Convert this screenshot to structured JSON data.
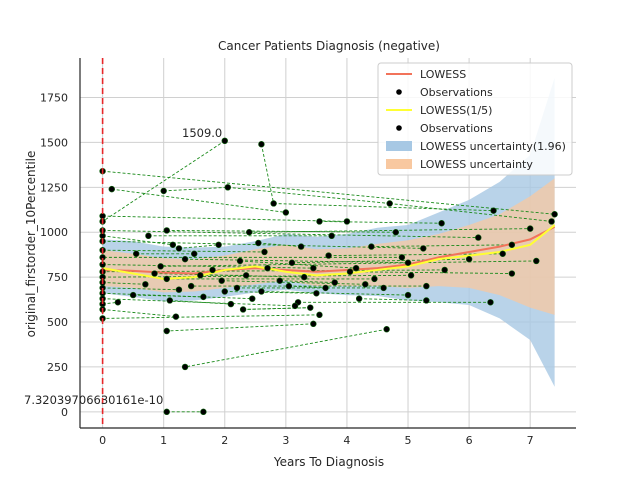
{
  "chart_data": {
    "type": "scatter",
    "title": "Cancer Patients Diagnosis (negative)",
    "xlabel": "Years To Diagnosis",
    "ylabel": "original_firstorder_10Percentile",
    "xlim": [
      -0.37,
      7.75
    ],
    "ylim": [
      -90,
      1970
    ],
    "xticks": [
      "0",
      "1",
      "2",
      "3",
      "4",
      "5",
      "6",
      "7"
    ],
    "yticks": [
      "0",
      "250",
      "500",
      "750",
      "1000",
      "1250",
      "1500",
      "1750"
    ],
    "grid": true,
    "vline_x": 0,
    "legend_position": "top-right",
    "legend": [
      {
        "label": "LOWESS",
        "kind": "line",
        "color": "#f2735a"
      },
      {
        "label": "Observations",
        "kind": "dot",
        "color": "#000000"
      },
      {
        "label": "LOWESS(1/5)",
        "kind": "line",
        "color": "#ffff33"
      },
      {
        "label": "Observations",
        "kind": "dot",
        "color": "#000000"
      },
      {
        "label": "LOWESS uncertainty(1.96)",
        "kind": "patch",
        "color": "#a7c8e4"
      },
      {
        "label": "LOWESS uncertainty",
        "kind": "patch",
        "color": "#f8c8a0"
      }
    ],
    "annotations": [
      {
        "text": "1509.0",
        "x": 1.3,
        "y": 1530
      },
      {
        "text": "7.32039706630161e-10",
        "x": -1.3,
        "y": 45
      }
    ],
    "band_outer": {
      "x": [
        0,
        0.5,
        1,
        1.5,
        2,
        2.5,
        3,
        3.5,
        4,
        4.5,
        5,
        5.5,
        6,
        6.5,
        7,
        7.4
      ],
      "upper": [
        960,
        950,
        920,
        915,
        920,
        950,
        990,
        975,
        990,
        1025,
        1040,
        1110,
        1180,
        1280,
        1430,
        1860
      ],
      "lower": [
        660,
        640,
        615,
        620,
        640,
        665,
        680,
        660,
        650,
        645,
        620,
        610,
        595,
        520,
        400,
        140
      ]
    },
    "band_inner": {
      "x": [
        0,
        0.5,
        1,
        1.5,
        2,
        2.5,
        3,
        3.5,
        4,
        4.5,
        5,
        5.5,
        6,
        6.5,
        7,
        7.4
      ],
      "upper": [
        900,
        880,
        855,
        850,
        870,
        905,
        930,
        905,
        910,
        935,
        955,
        990,
        1040,
        1100,
        1200,
        1300
      ],
      "lower": [
        700,
        690,
        665,
        670,
        690,
        710,
        730,
        700,
        700,
        700,
        690,
        700,
        690,
        650,
        580,
        540
      ]
    },
    "lowess": {
      "x": [
        0,
        0.5,
        1,
        1.5,
        2,
        2.5,
        3,
        3.5,
        4,
        4.5,
        5,
        5.5,
        6,
        6.5,
        7,
        7.4
      ],
      "y": [
        790,
        785,
        775,
        770,
        790,
        800,
        790,
        780,
        790,
        800,
        820,
        860,
        890,
        920,
        960,
        1030
      ]
    },
    "lowess_fifth": {
      "x": [
        0,
        0.5,
        1,
        1.5,
        2,
        2.5,
        3,
        3.5,
        4,
        4.5,
        5,
        5.5,
        6,
        6.5,
        7,
        7.4
      ],
      "y": [
        800,
        770,
        740,
        750,
        790,
        810,
        780,
        760,
        770,
        790,
        810,
        850,
        870,
        890,
        930,
        1040
      ]
    },
    "observations": [
      {
        "x": 0,
        "y": 1340
      },
      {
        "x": 0.15,
        "y": 1240
      },
      {
        "x": 1,
        "y": 1230
      },
      {
        "x": 2.05,
        "y": 1250
      },
      {
        "x": 2.6,
        "y": 1490
      },
      {
        "x": 2.0,
        "y": 1509
      },
      {
        "x": 2.8,
        "y": 1160
      },
      {
        "x": 4.7,
        "y": 1160
      },
      {
        "x": 6.4,
        "y": 1120
      },
      {
        "x": 7.4,
        "y": 1100
      },
      {
        "x": 3.0,
        "y": 1110
      },
      {
        "x": 0,
        "y": 1090
      },
      {
        "x": 0,
        "y": 1060
      },
      {
        "x": 4.0,
        "y": 1060
      },
      {
        "x": 3.55,
        "y": 1060
      },
      {
        "x": 5.55,
        "y": 1050
      },
      {
        "x": 7.35,
        "y": 1060
      },
      {
        "x": 0,
        "y": 1010
      },
      {
        "x": 1.05,
        "y": 1010
      },
      {
        "x": 2.4,
        "y": 1000
      },
      {
        "x": 7.0,
        "y": 1020
      },
      {
        "x": 4.8,
        "y": 1000
      },
      {
        "x": 6.15,
        "y": 970
      },
      {
        "x": 3.75,
        "y": 980
      },
      {
        "x": 0,
        "y": 980
      },
      {
        "x": 0.75,
        "y": 980
      },
      {
        "x": 0,
        "y": 950
      },
      {
        "x": 1.15,
        "y": 930
      },
      {
        "x": 1.25,
        "y": 910
      },
      {
        "x": 1.9,
        "y": 930
      },
      {
        "x": 2.55,
        "y": 940
      },
      {
        "x": 3.25,
        "y": 920
      },
      {
        "x": 4.4,
        "y": 920
      },
      {
        "x": 5.25,
        "y": 910
      },
      {
        "x": 6.7,
        "y": 930
      },
      {
        "x": 0,
        "y": 900
      },
      {
        "x": 0.55,
        "y": 880
      },
      {
        "x": 1.5,
        "y": 880
      },
      {
        "x": 2.65,
        "y": 890
      },
      {
        "x": 3.7,
        "y": 870
      },
      {
        "x": 4.9,
        "y": 860
      },
      {
        "x": 6.55,
        "y": 880
      },
      {
        "x": 0,
        "y": 860
      },
      {
        "x": 1.35,
        "y": 850
      },
      {
        "x": 2.25,
        "y": 840
      },
      {
        "x": 3.1,
        "y": 830
      },
      {
        "x": 4.15,
        "y": 800
      },
      {
        "x": 5.0,
        "y": 830
      },
      {
        "x": 6.0,
        "y": 850
      },
      {
        "x": 7.1,
        "y": 840
      },
      {
        "x": 0,
        "y": 820
      },
      {
        "x": 0.95,
        "y": 810
      },
      {
        "x": 1.8,
        "y": 790
      },
      {
        "x": 2.7,
        "y": 800
      },
      {
        "x": 3.45,
        "y": 800
      },
      {
        "x": 4.05,
        "y": 780
      },
      {
        "x": 5.6,
        "y": 790
      },
      {
        "x": 6.7,
        "y": 770
      },
      {
        "x": 0,
        "y": 780
      },
      {
        "x": 0.85,
        "y": 770
      },
      {
        "x": 1.6,
        "y": 760
      },
      {
        "x": 2.35,
        "y": 760
      },
      {
        "x": 3.3,
        "y": 750
      },
      {
        "x": 4.45,
        "y": 740
      },
      {
        "x": 5.05,
        "y": 760
      },
      {
        "x": 0,
        "y": 750
      },
      {
        "x": 1.05,
        "y": 740
      },
      {
        "x": 1.95,
        "y": 730
      },
      {
        "x": 2.9,
        "y": 730
      },
      {
        "x": 3.8,
        "y": 720
      },
      {
        "x": 4.3,
        "y": 710
      },
      {
        "x": 5.3,
        "y": 700
      },
      {
        "x": 0,
        "y": 720
      },
      {
        "x": 0.7,
        "y": 710
      },
      {
        "x": 1.45,
        "y": 700
      },
      {
        "x": 2.2,
        "y": 690
      },
      {
        "x": 3.05,
        "y": 700
      },
      {
        "x": 3.65,
        "y": 690
      },
      {
        "x": 4.6,
        "y": 690
      },
      {
        "x": 0,
        "y": 690
      },
      {
        "x": 1.25,
        "y": 680
      },
      {
        "x": 2.0,
        "y": 670
      },
      {
        "x": 2.6,
        "y": 670
      },
      {
        "x": 3.5,
        "y": 660
      },
      {
        "x": 5.0,
        "y": 650
      },
      {
        "x": 0,
        "y": 660
      },
      {
        "x": 0.5,
        "y": 650
      },
      {
        "x": 1.65,
        "y": 640
      },
      {
        "x": 2.45,
        "y": 630
      },
      {
        "x": 3.2,
        "y": 610
      },
      {
        "x": 4.2,
        "y": 630
      },
      {
        "x": 5.3,
        "y": 620
      },
      {
        "x": 6.35,
        "y": 610
      },
      {
        "x": 0,
        "y": 630
      },
      {
        "x": 1.1,
        "y": 620
      },
      {
        "x": 2.1,
        "y": 600
      },
      {
        "x": 3.15,
        "y": 590
      },
      {
        "x": 0,
        "y": 600
      },
      {
        "x": 0.25,
        "y": 610
      },
      {
        "x": 2.3,
        "y": 570
      },
      {
        "x": 3.4,
        "y": 580
      },
      {
        "x": 0,
        "y": 570
      },
      {
        "x": 3.55,
        "y": 540
      },
      {
        "x": 1.2,
        "y": 530
      },
      {
        "x": 0,
        "y": 520
      },
      {
        "x": 3.45,
        "y": 490
      },
      {
        "x": 1.05,
        "y": 450
      },
      {
        "x": 4.65,
        "y": 460
      },
      {
        "x": 1.35,
        "y": 250
      },
      {
        "x": 1.05,
        "y": 0
      },
      {
        "x": 1.65,
        "y": 0
      }
    ],
    "links": [
      [
        0,
        9
      ],
      [
        1,
        10
      ],
      [
        2,
        3
      ],
      [
        3,
        7
      ],
      [
        4,
        6
      ],
      [
        5,
        12
      ],
      [
        6,
        8
      ],
      [
        7,
        16
      ],
      [
        11,
        13
      ],
      [
        14,
        15
      ],
      [
        17,
        22
      ],
      [
        18,
        21
      ],
      [
        19,
        20
      ],
      [
        23,
        25
      ],
      [
        24,
        27
      ],
      [
        26,
        33
      ],
      [
        28,
        29
      ],
      [
        30,
        31
      ],
      [
        32,
        34
      ],
      [
        35,
        38
      ],
      [
        36,
        37
      ],
      [
        39,
        41
      ],
      [
        40,
        42
      ],
      [
        43,
        47
      ],
      [
        44,
        46
      ],
      [
        45,
        48
      ],
      [
        49,
        51
      ],
      [
        50,
        54
      ],
      [
        52,
        53
      ],
      [
        55,
        57
      ],
      [
        56,
        58
      ],
      [
        59,
        62
      ],
      [
        60,
        61
      ],
      [
        63,
        66
      ],
      [
        64,
        65
      ],
      [
        67,
        70
      ],
      [
        68,
        69
      ],
      [
        71,
        74
      ],
      [
        72,
        73
      ],
      [
        75,
        78
      ],
      [
        76,
        77
      ],
      [
        79,
        80
      ],
      [
        81,
        83
      ],
      [
        82,
        84
      ],
      [
        85,
        88
      ],
      [
        86,
        87
      ],
      [
        89,
        92
      ],
      [
        90,
        91
      ],
      [
        93,
        96
      ],
      [
        94,
        95
      ],
      [
        97,
        98
      ],
      [
        99,
        100
      ],
      [
        101,
        103
      ],
      [
        102,
        104
      ],
      [
        105,
        106
      ],
      [
        107,
        108
      ],
      [
        109,
        110
      ],
      [
        111,
        112
      ],
      [
        113,
        114
      ],
      [
        115,
        5
      ],
      [
        116,
        4
      ],
      [
        100,
        99
      ]
    ]
  }
}
